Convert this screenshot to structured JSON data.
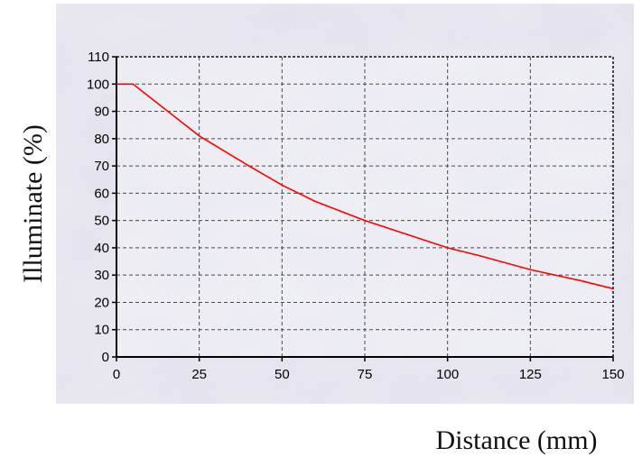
{
  "chart_data": {
    "type": "line",
    "title": "",
    "xlabel": "Distance (mm)",
    "ylabel": "Illuminate (%)",
    "xlim": [
      0,
      150
    ],
    "ylim": [
      0,
      110
    ],
    "xticks": [
      0,
      25,
      50,
      75,
      100,
      125,
      150
    ],
    "yticks": [
      0,
      10,
      20,
      30,
      40,
      50,
      60,
      70,
      80,
      90,
      100,
      110
    ],
    "grid": true,
    "legend": "none",
    "series": [
      {
        "color": "#ff0000",
        "x": [
          0,
          5,
          25,
          40,
          50,
          60,
          75,
          90,
          100,
          110,
          125,
          140,
          150
        ],
        "y": [
          100,
          100,
          81,
          70,
          63,
          57,
          50,
          44,
          40,
          37,
          32,
          28,
          25
        ]
      }
    ]
  },
  "colors": {
    "plot_background": "#f1f0f6",
    "panel_background": "#e9e8f1",
    "marble_veins": "#b8b7cf",
    "series": "#ff0000"
  }
}
